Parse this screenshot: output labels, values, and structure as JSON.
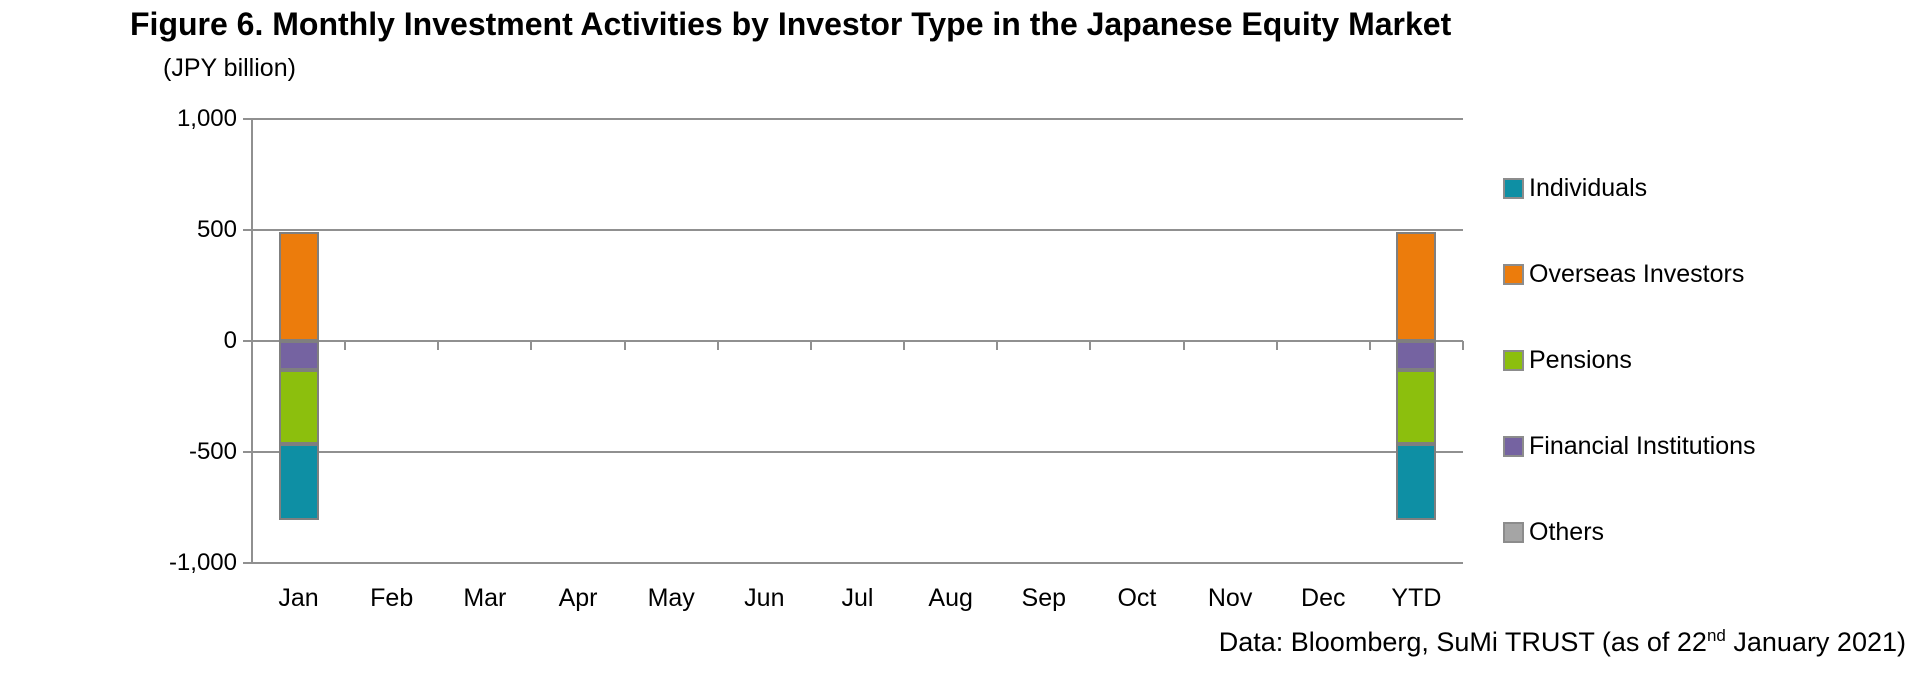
{
  "title": "Figure 6. Monthly Investment Activities by Investor Type in the Japanese Equity Market",
  "units_label": "(JPY billion)",
  "source": {
    "prefix": "Data: Bloomberg, SuMi TRUST (as of 22",
    "sup": "nd",
    "suffix": " January 2021)"
  },
  "colors": {
    "gridline": "#909090",
    "bar_border": "#7F7F7F",
    "legend_swatch_border": "#8C8C8C",
    "text": "#000000",
    "background": "#FFFFFF"
  },
  "chart_data": {
    "type": "bar",
    "stacked": true,
    "title": "Figure 6. Monthly Investment Activities by Investor Type in the Japanese Equity Market",
    "ylabel": "(JPY billion)",
    "categories": [
      "Jan",
      "Feb",
      "Mar",
      "Apr",
      "May",
      "Jun",
      "Jul",
      "Aug",
      "Sep",
      "Oct",
      "Nov",
      "Dec",
      "YTD"
    ],
    "ylim": [
      -1000,
      1000
    ],
    "grid": true,
    "legend_position": "right",
    "yticks": [
      {
        "value": 1000,
        "label": "1,000"
      },
      {
        "value": 500,
        "label": "500"
      },
      {
        "value": 0,
        "label": "0"
      },
      {
        "value": -500,
        "label": "-500"
      },
      {
        "value": -1000,
        "label": "-1,000"
      }
    ],
    "series": [
      {
        "name": "Individuals",
        "color": "#0E8FA4",
        "values": [
          -340,
          0,
          0,
          0,
          0,
          0,
          0,
          0,
          0,
          0,
          0,
          0,
          -340
        ]
      },
      {
        "name": "Overseas Investors",
        "color": "#EC7C0C",
        "values": [
          490,
          0,
          0,
          0,
          0,
          0,
          0,
          0,
          0,
          0,
          0,
          0,
          490
        ]
      },
      {
        "name": "Pensions",
        "color": "#8CBF0D",
        "values": [
          -335,
          0,
          0,
          0,
          0,
          0,
          0,
          0,
          0,
          0,
          0,
          0,
          -335
        ]
      },
      {
        "name": "Financial Institutions",
        "color": "#7563A1",
        "values": [
          -130,
          0,
          0,
          0,
          0,
          0,
          0,
          0,
          0,
          0,
          0,
          0,
          -130
        ]
      },
      {
        "name": "Others",
        "color": "#A5A5A5",
        "values": [
          0,
          0,
          0,
          0,
          0,
          0,
          0,
          0,
          0,
          0,
          0,
          0,
          0
        ]
      }
    ]
  }
}
